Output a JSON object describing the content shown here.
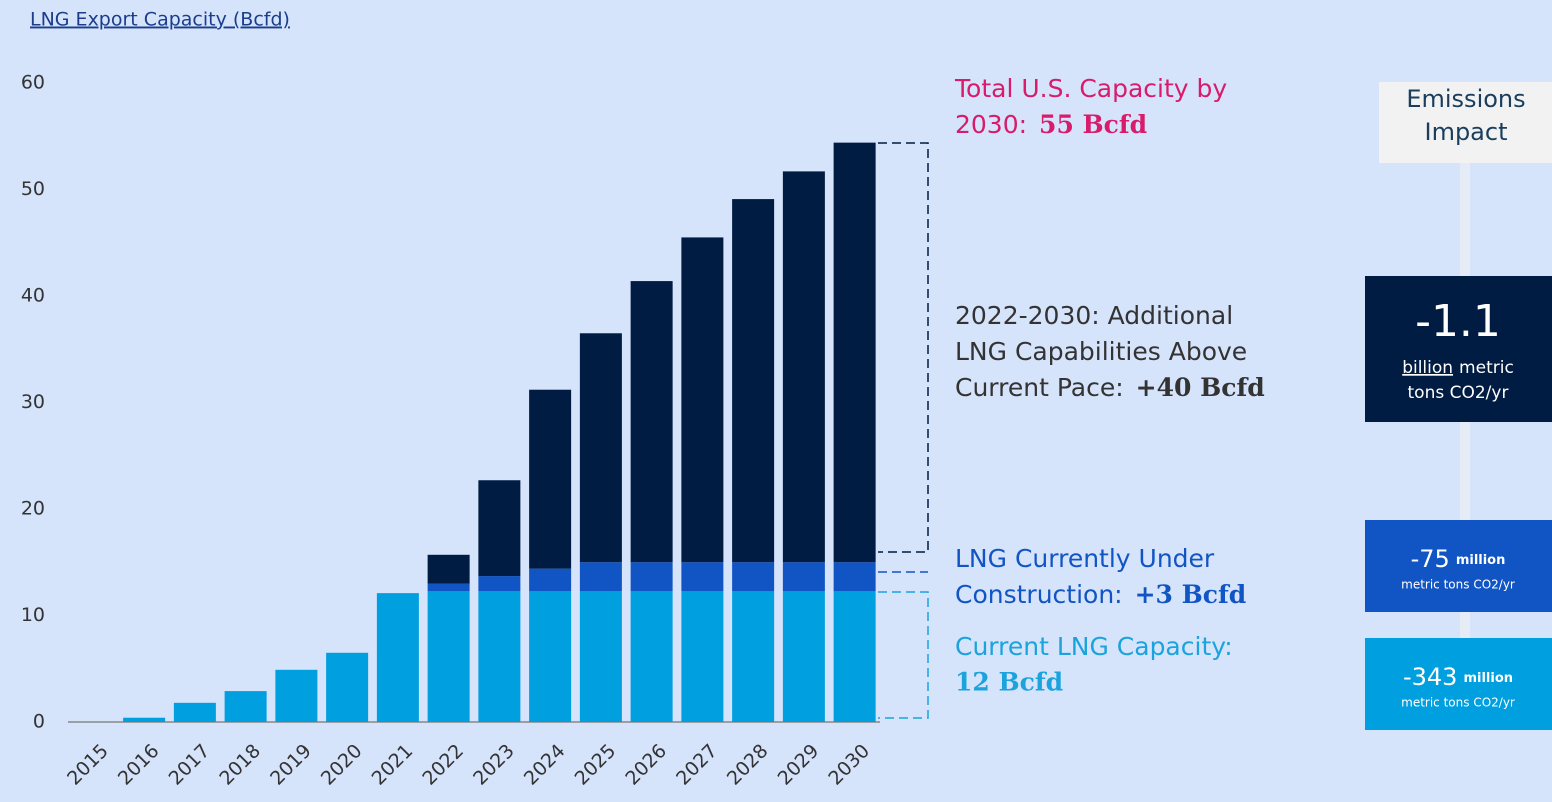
{
  "chart_data": {
    "type": "stacked_bar",
    "title": "LNG Export Capacity (Bcfd)",
    "categories": [
      "2015",
      "2016",
      "2017",
      "2018",
      "2019",
      "2020",
      "2021",
      "2022",
      "2023",
      "2024",
      "2025",
      "2026",
      "2027",
      "2028",
      "2029",
      "2030"
    ],
    "series": [
      {
        "color": "#009fdf",
        "values": [
          0,
          0.4,
          1.8,
          2.9,
          4.9,
          6.5,
          12.1,
          12.3,
          12.3,
          12.3,
          12.3,
          12.3,
          12.3,
          12.3,
          12.3,
          12.3
        ]
      },
      {
        "color": "#1155c4",
        "values": [
          0,
          0,
          0,
          0,
          0,
          0,
          0,
          0.7,
          1.4,
          2.1,
          2.7,
          2.7,
          2.7,
          2.7,
          2.7,
          2.7
        ]
      },
      {
        "color": "#001c42",
        "values": [
          0,
          0,
          0,
          0,
          0,
          0,
          0,
          2.7,
          9.0,
          16.8,
          21.5,
          26.4,
          30.5,
          34.1,
          36.7,
          39.4
        ]
      }
    ],
    "ylim": [
      0,
      60
    ],
    "yticks": [
      0,
      10,
      20,
      30,
      40,
      50,
      60
    ],
    "grid": false,
    "annotations": [
      {
        "lines": [
          "Total U.S. Capacity by",
          "2030:"
        ],
        "emphasis": "55 Bcfd",
        "color": "#d81b6a"
      },
      {
        "lines": [
          "2022-2030: Additional",
          "LNG Capabilities Above",
          "Current Pace:"
        ],
        "emphasis": "+40 Bcfd",
        "color": "#333333"
      },
      {
        "lines": [
          "LNG Currently Under",
          "Construction:"
        ],
        "emphasis": "+3 Bcfd",
        "color": "#1155c4"
      },
      {
        "lines": [
          "Current LNG Capacity:"
        ],
        "emphasis": "12 Bcfd",
        "color": "#1aa3dd"
      }
    ],
    "emissions": {
      "title": [
        "Emissions",
        "Impact"
      ],
      "items": [
        {
          "value": "-1.1",
          "scale": "billion",
          "unit": [
            "metric",
            "tons CO2/yr"
          ],
          "color": "#001c42"
        },
        {
          "value": "-75",
          "scale": "million",
          "unit": [
            "metric tons CO2/yr"
          ],
          "color": "#1155c4"
        },
        {
          "value": "-343",
          "scale": "million",
          "unit": [
            "metric tons CO2/yr"
          ],
          "color": "#009fdf"
        }
      ]
    }
  }
}
